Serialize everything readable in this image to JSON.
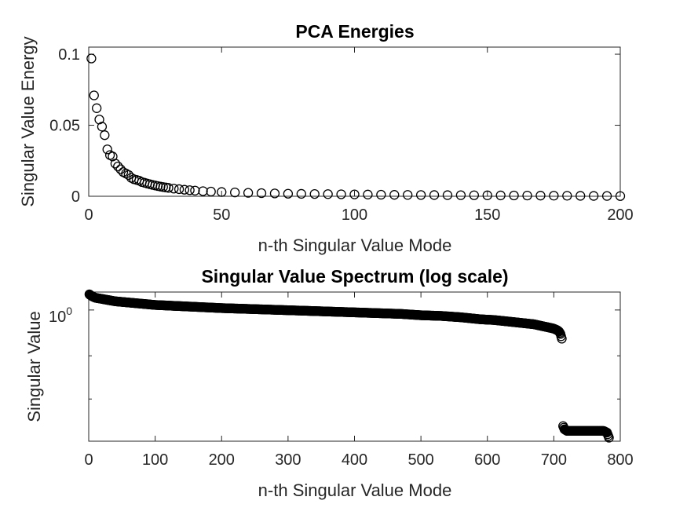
{
  "chart_data": [
    {
      "type": "scatter",
      "title": "PCA Energies",
      "xlabel": "n-th Singular Value Mode",
      "ylabel": "Singular Value Energy",
      "xlim": [
        0,
        200
      ],
      "ylim": [
        0,
        0.105
      ],
      "x_ticks": [
        0,
        50,
        100,
        150,
        200
      ],
      "x_tick_labels": [
        "0",
        "50",
        "100",
        "150",
        "200"
      ],
      "y_ticks": [
        0,
        0.05,
        0.1
      ],
      "y_tick_labels": [
        "0",
        "0.05",
        "0.1"
      ],
      "grid": false,
      "marker": "circle",
      "series": [
        {
          "x": [
            1,
            2,
            3,
            4,
            5,
            6,
            7,
            8,
            9,
            10,
            11,
            12,
            13,
            14,
            15,
            16,
            17,
            18,
            19,
            20,
            21,
            22,
            23,
            24,
            25,
            26,
            27,
            28,
            29,
            30,
            32,
            34,
            36,
            38,
            40,
            43,
            46,
            50,
            55,
            60,
            65,
            70,
            75,
            80,
            85,
            90,
            95,
            100,
            105,
            110,
            115,
            120,
            125,
            130,
            135,
            140,
            145,
            150,
            155,
            160,
            165,
            170,
            175,
            180,
            185,
            190,
            195,
            200
          ],
          "y": [
            0.097,
            0.071,
            0.062,
            0.054,
            0.049,
            0.043,
            0.033,
            0.029,
            0.028,
            0.023,
            0.021,
            0.019,
            0.017,
            0.016,
            0.015,
            0.013,
            0.012,
            0.0115,
            0.011,
            0.01,
            0.0095,
            0.009,
            0.0085,
            0.008,
            0.0076,
            0.0072,
            0.0068,
            0.0065,
            0.0062,
            0.0059,
            0.0054,
            0.005,
            0.0046,
            0.0043,
            0.004,
            0.0036,
            0.0033,
            0.003,
            0.0027,
            0.0024,
            0.0022,
            0.002,
            0.0018,
            0.0017,
            0.0016,
            0.0015,
            0.0014,
            0.0013,
            0.0012,
            0.0011,
            0.001,
            0.00095,
            0.0009,
            0.00085,
            0.0008,
            0.00075,
            0.0007,
            0.00065,
            0.0006,
            0.00055,
            0.0005,
            0.00045,
            0.0004,
            0.00035,
            0.0003,
            0.00025,
            0.0002,
            0.00015
          ]
        }
      ]
    },
    {
      "type": "scatter",
      "title": "Singular Value Spectrum (log scale)",
      "xlabel": "n-th Singular Value Mode",
      "ylabel": "Singular Value",
      "xlim": [
        0,
        800
      ],
      "y_scale": "log",
      "ylim": [
        0.36,
        1.15
      ],
      "x_ticks": [
        0,
        100,
        200,
        300,
        400,
        500,
        600,
        700,
        800
      ],
      "x_tick_labels": [
        "0",
        "100",
        "200",
        "300",
        "400",
        "500",
        "600",
        "700",
        "800"
      ],
      "y_ticks": [
        1
      ],
      "y_tick_labels_base": "10",
      "y_tick_labels_exp": "0",
      "y_minor_ticks": [
        0.7,
        0.5
      ],
      "grid": false,
      "marker": "circle",
      "series": [
        {
          "x": [
            1,
            3,
            6,
            10,
            15,
            20,
            30,
            40,
            50,
            60,
            80,
            100,
            120,
            140,
            160,
            180,
            200,
            230,
            260,
            290,
            320,
            350,
            380,
            410,
            440,
            470,
            500,
            530,
            560,
            590,
            610,
            630,
            650,
            670,
            680,
            690,
            700,
            705,
            708,
            710,
            712,
            714,
            716,
            720,
            725,
            730,
            735,
            740,
            745,
            750,
            755,
            760,
            765,
            770,
            775,
            780,
            783
          ],
          "y": [
            1.13,
            1.12,
            1.11,
            1.1,
            1.095,
            1.09,
            1.08,
            1.07,
            1.065,
            1.06,
            1.05,
            1.04,
            1.035,
            1.03,
            1.025,
            1.02,
            1.015,
            1.01,
            1.005,
            1.0,
            0.995,
            0.99,
            0.985,
            0.98,
            0.975,
            0.97,
            0.96,
            0.955,
            0.945,
            0.93,
            0.925,
            0.915,
            0.905,
            0.895,
            0.885,
            0.875,
            0.865,
            0.855,
            0.845,
            0.83,
            0.8,
            0.405,
            0.395,
            0.39,
            0.39,
            0.39,
            0.39,
            0.39,
            0.39,
            0.39,
            0.39,
            0.39,
            0.39,
            0.39,
            0.39,
            0.385,
            0.37
          ]
        }
      ]
    }
  ]
}
